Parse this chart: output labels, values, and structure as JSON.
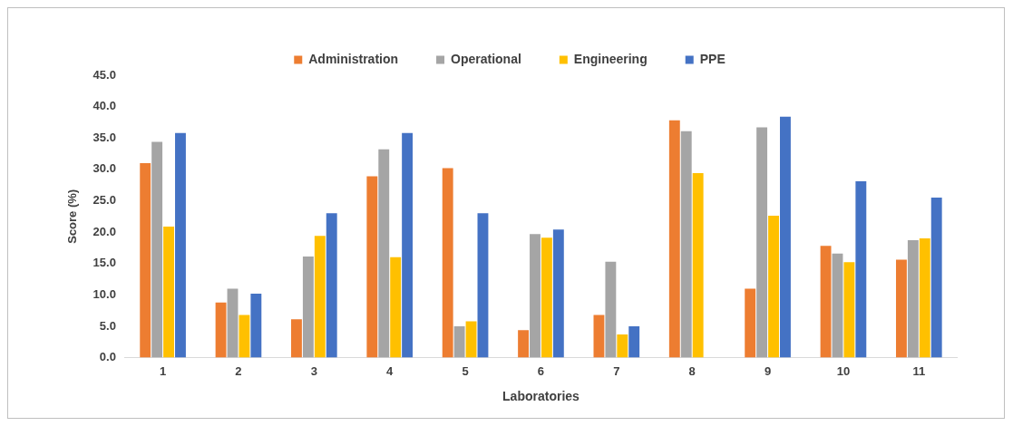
{
  "chart_data": {
    "type": "bar",
    "xlabel": "Laboratories",
    "ylabel": "Score (%)",
    "categories": [
      "1",
      "2",
      "3",
      "4",
      "5",
      "6",
      "7",
      "8",
      "9",
      "10",
      "11"
    ],
    "series": [
      {
        "name": "Administration",
        "color": "#ed7d31",
        "values": [
          31.0,
          8.8,
          6.1,
          28.9,
          30.2,
          4.4,
          6.8,
          37.8,
          11.0,
          17.8,
          15.6
        ]
      },
      {
        "name": "Operational",
        "color": "#a5a5a5",
        "values": [
          34.4,
          11.0,
          16.1,
          33.2,
          5.0,
          19.7,
          15.3,
          36.1,
          36.7,
          16.6,
          18.7
        ]
      },
      {
        "name": "Engineering",
        "color": "#ffc000",
        "values": [
          20.9,
          6.8,
          19.4,
          16.0,
          5.8,
          19.1,
          3.7,
          29.4,
          22.6,
          15.2,
          19.0
        ]
      },
      {
        "name": "PPE",
        "color": "#4472c4",
        "values": [
          35.8,
          10.2,
          23.0,
          35.8,
          23.0,
          20.4,
          5.0,
          0,
          38.4,
          28.1,
          25.5
        ]
      }
    ],
    "ylim": [
      0,
      45
    ],
    "yticks": [
      {
        "value": 0,
        "label": "0.0"
      },
      {
        "value": 5,
        "label": "5.0"
      },
      {
        "value": 10,
        "label": "10.0"
      },
      {
        "value": 15,
        "label": "15.0"
      },
      {
        "value": 20,
        "label": "20.0"
      },
      {
        "value": 25,
        "label": "25.0"
      },
      {
        "value": 30,
        "label": "30.0"
      },
      {
        "value": 35,
        "label": "35.0"
      },
      {
        "value": 40,
        "label": "40.0"
      },
      {
        "value": 45,
        "label": "45.0"
      }
    ],
    "grid": false,
    "legend": "top"
  }
}
